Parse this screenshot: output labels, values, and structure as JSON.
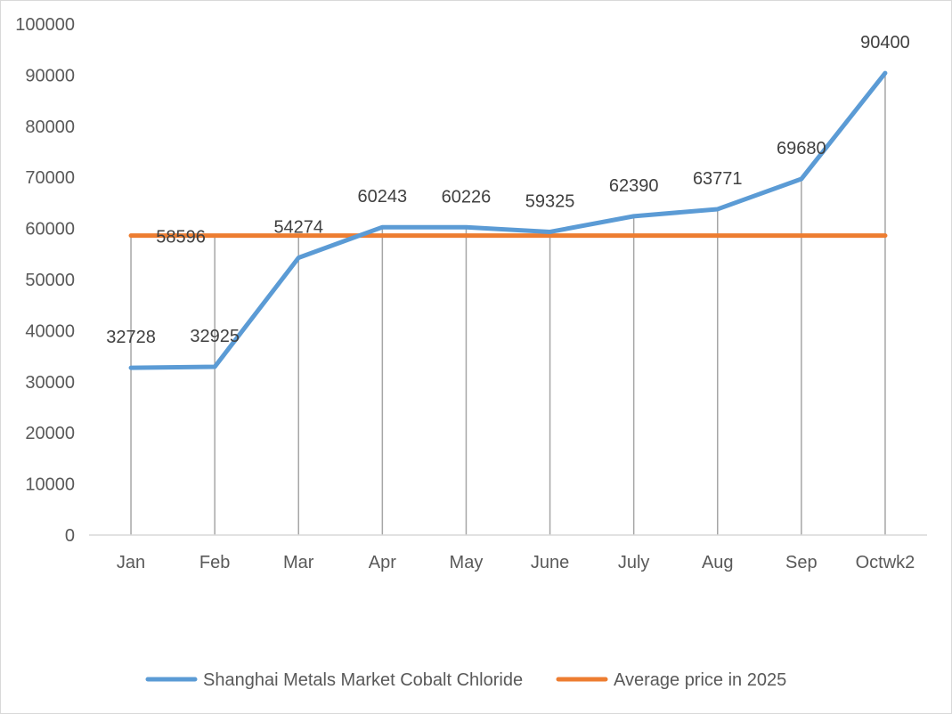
{
  "chart_data": {
    "type": "line",
    "title": "",
    "xlabel": "",
    "ylabel": "",
    "categories": [
      "Jan",
      "Feb",
      "Mar",
      "Apr",
      "May",
      "June",
      "July",
      "Aug",
      "Sep",
      "Octwk2"
    ],
    "ylim": [
      0,
      100000
    ],
    "yticks": [
      "0",
      "10000",
      "20000",
      "30000",
      "40000",
      "50000",
      "60000",
      "70000",
      "80000",
      "90000",
      "100000"
    ],
    "grid": "vertical drop lines at each category",
    "legend_position": "bottom",
    "series": [
      {
        "name": "Shanghai Metals Market Cobalt Chloride",
        "color": "#5B9BD5",
        "values": [
          32728,
          32925,
          54274,
          60243,
          60226,
          59325,
          62390,
          63771,
          69680,
          90400
        ],
        "labels": [
          "32728",
          "32925",
          "54274",
          "60243",
          "60226",
          "59325",
          "62390",
          "63771",
          "69680",
          "90400"
        ]
      },
      {
        "name": "Average price in 2025",
        "color": "#ED7D31",
        "values": [
          58596,
          58596,
          58596,
          58596,
          58596,
          58596,
          58596,
          58596,
          58596,
          58596
        ],
        "label": "58596"
      }
    ]
  }
}
